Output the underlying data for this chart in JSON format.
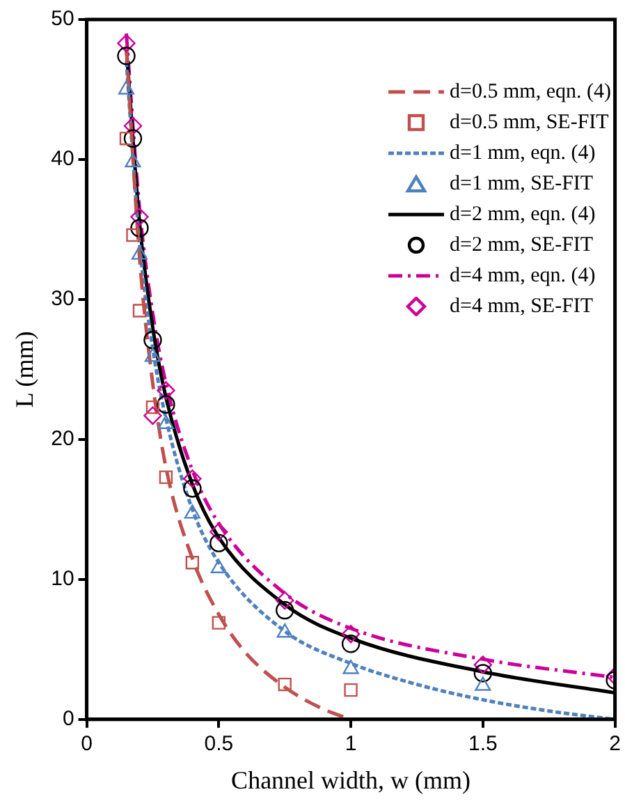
{
  "chart_data": {
    "type": "scatter",
    "xlabel": "Channel width, w (mm)",
    "ylabel": "L (mm)",
    "xlim": [
      0,
      2
    ],
    "xticks": [
      0,
      0.5,
      1,
      1.5,
      2
    ],
    "ylim": [
      0,
      50
    ],
    "yticks": [
      0,
      10,
      20,
      30,
      40,
      50
    ],
    "grid": false,
    "legend": "top right",
    "series": [
      {
        "name": "d=0.5 mm, eqn. (4)",
        "type": "line",
        "color": "#c0504d",
        "line_style": "dashed",
        "marker": "none",
        "x": [
          0.15,
          0.2,
          0.25,
          0.3,
          0.4,
          0.5,
          0.6,
          0.75,
          0.9,
          1
        ],
        "values": [
          48,
          33,
          24,
          18,
          11.5,
          7.5,
          4.8,
          2.3,
          0.7,
          0
        ]
      },
      {
        "name": "d=0.5 mm, SE-FIT",
        "type": "scatter",
        "color": "#c0504d",
        "marker": "square",
        "x": [
          0.15,
          0.175,
          0.2,
          0.25,
          0.3,
          0.4,
          0.5,
          0.75,
          1
        ],
        "values": [
          41.5,
          34.6,
          29.2,
          22.3,
          17.3,
          11.2,
          6.9,
          2.5,
          2.1
        ]
      },
      {
        "name": "d=1 mm, eqn. (4)",
        "type": "line",
        "color": "#4f81bd",
        "line_style": "dotted",
        "marker": "none",
        "x": [
          0.15,
          0.2,
          0.25,
          0.3,
          0.4,
          0.5,
          0.75,
          1,
          1.25,
          1.5,
          1.75,
          2
        ],
        "values": [
          47,
          34,
          26.5,
          21.5,
          15,
          11.2,
          6.3,
          4,
          2.5,
          1.4,
          0.6,
          0
        ]
      },
      {
        "name": "d=1 mm, SE-FIT",
        "type": "scatter",
        "color": "#4f81bd",
        "marker": "triangle",
        "x": [
          0.15,
          0.175,
          0.2,
          0.25,
          0.3,
          0.4,
          0.5,
          0.75,
          1,
          1.5
        ],
        "values": [
          45,
          39.8,
          33.2,
          25.9,
          21.1,
          14.7,
          10.8,
          6.2,
          3.6,
          2.4
        ]
      },
      {
        "name": "d=2 mm, eqn. (4)",
        "type": "line",
        "color": "#000000",
        "line_style": "solid",
        "marker": "none",
        "x": [
          0.15,
          0.2,
          0.25,
          0.3,
          0.4,
          0.5,
          0.75,
          1,
          1.5,
          2
        ],
        "values": [
          48,
          35.5,
          28,
          23,
          16.8,
          13,
          8.2,
          5.8,
          3.4,
          1.9
        ]
      },
      {
        "name": "d=2 mm, SE-FIT",
        "type": "scatter",
        "color": "#000000",
        "marker": "circle",
        "x": [
          0.15,
          0.175,
          0.2,
          0.25,
          0.3,
          0.4,
          0.5,
          0.75,
          1,
          1.5,
          2
        ],
        "values": [
          47.4,
          41.5,
          35.1,
          27.1,
          22.5,
          16.5,
          12.6,
          7.8,
          5.4,
          3.3,
          2.8
        ]
      },
      {
        "name": "d=4 mm, eqn. (4)",
        "type": "line",
        "color": "#cc0099",
        "line_style": "dashdot",
        "marker": "none",
        "x": [
          0.15,
          0.2,
          0.25,
          0.3,
          0.4,
          0.5,
          0.75,
          1,
          1.5,
          2
        ],
        "values": [
          49,
          36.5,
          29,
          24,
          17.8,
          14,
          9,
          6.5,
          4.3,
          3
        ]
      },
      {
        "name": "d=4 mm, SE-FIT",
        "type": "scatter",
        "color": "#cc0099",
        "marker": "diamond",
        "x": [
          0.15,
          0.175,
          0.2,
          0.25,
          0.3,
          0.4,
          0.5,
          0.75,
          1,
          1.5,
          2
        ],
        "values": [
          48.3,
          42.4,
          35.9,
          21.7,
          23.5,
          17.2,
          13.4,
          8.5,
          6.1,
          3.9,
          3.1
        ]
      }
    ]
  }
}
